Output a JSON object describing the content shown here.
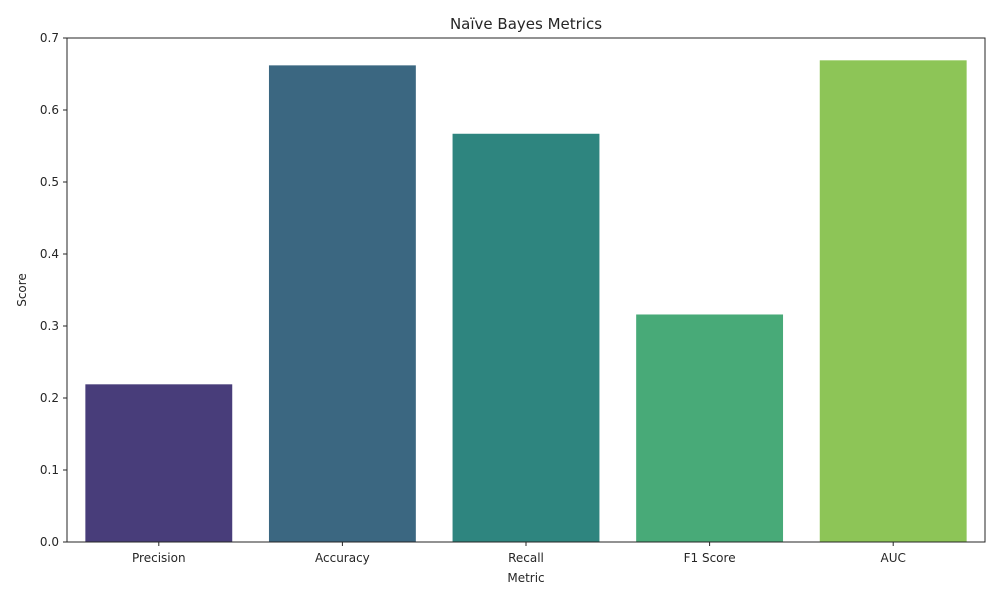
{
  "chart_data": {
    "type": "bar",
    "title": "Naïve Bayes Metrics",
    "xlabel": "Metric",
    "ylabel": "Score",
    "categories": [
      "Precision",
      "Accuracy",
      "Recall",
      "F1 Score",
      "AUC"
    ],
    "values": [
      0.219,
      0.662,
      0.567,
      0.316,
      0.669
    ],
    "colors": [
      "#483d7a",
      "#3b6781",
      "#2e857f",
      "#48aa78",
      "#8dc557"
    ],
    "ylim": [
      0,
      0.7
    ],
    "yticks": [
      "0.0",
      "0.1",
      "0.2",
      "0.3",
      "0.4",
      "0.5",
      "0.6",
      "0.7"
    ],
    "grid": false,
    "legend": "none"
  }
}
